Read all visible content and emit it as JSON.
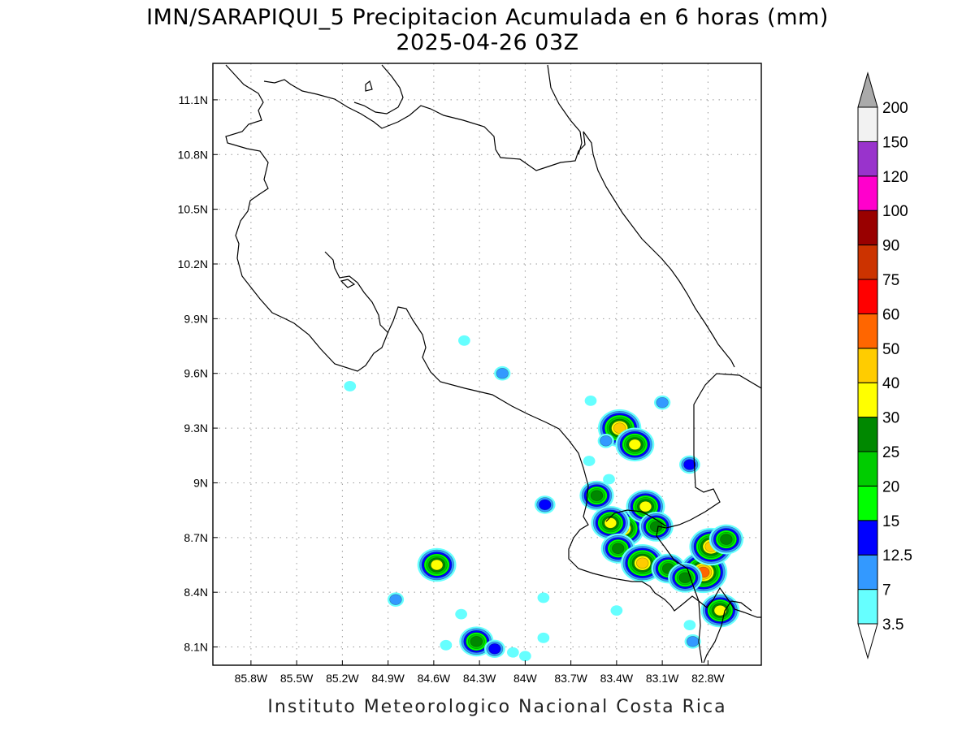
{
  "title": {
    "line1": "IMN/SARAPIQUI_5 Precipitacion Acumulada en 6 horas (mm)",
    "line2": "2025-04-26 03Z"
  },
  "footer": "Instituto Meteorologico Nacional Costa Rica",
  "map": {
    "lon_range": [
      -86.05,
      -82.45
    ],
    "lat_range": [
      8.0,
      11.3
    ],
    "x_ticks": [
      {
        "value": -85.8,
        "label": "85.8W"
      },
      {
        "value": -85.5,
        "label": "85.5W"
      },
      {
        "value": -85.2,
        "label": "85.2W"
      },
      {
        "value": -84.9,
        "label": "84.9W"
      },
      {
        "value": -84.6,
        "label": "84.6W"
      },
      {
        "value": -84.3,
        "label": "84.3W"
      },
      {
        "value": -84.0,
        "label": "84W"
      },
      {
        "value": -83.7,
        "label": "83.7W"
      },
      {
        "value": -83.4,
        "label": "83.4W"
      },
      {
        "value": -83.1,
        "label": "83.1W"
      },
      {
        "value": -82.8,
        "label": "82.8W"
      }
    ],
    "y_ticks": [
      {
        "value": 8.1,
        "label": "8.1N"
      },
      {
        "value": 8.4,
        "label": "8.4N"
      },
      {
        "value": 8.7,
        "label": "8.7N"
      },
      {
        "value": 9.0,
        "label": "9N"
      },
      {
        "value": 9.3,
        "label": "9.3N"
      },
      {
        "value": 9.6,
        "label": "9.6N"
      },
      {
        "value": 9.9,
        "label": "9.9N"
      },
      {
        "value": 10.2,
        "label": "10.2N"
      },
      {
        "value": 10.5,
        "label": "10.5N"
      },
      {
        "value": 10.8,
        "label": "10.8N"
      },
      {
        "value": 11.1,
        "label": "11.1N"
      }
    ],
    "grid": true,
    "precip_cells": [
      {
        "lon": -83.38,
        "lat": 9.3,
        "level": 40
      },
      {
        "lon": -83.28,
        "lat": 9.21,
        "level": 30
      },
      {
        "lon": -83.47,
        "lat": 9.23,
        "level": 7
      },
      {
        "lon": -83.53,
        "lat": 8.93,
        "level": 25
      },
      {
        "lon": -83.36,
        "lat": 8.75,
        "level": 40
      },
      {
        "lon": -83.44,
        "lat": 8.78,
        "level": 30
      },
      {
        "lon": -83.21,
        "lat": 8.87,
        "level": 30
      },
      {
        "lon": -83.14,
        "lat": 8.76,
        "level": 25
      },
      {
        "lon": -83.39,
        "lat": 8.64,
        "level": 25
      },
      {
        "lon": -83.23,
        "lat": 8.56,
        "level": 40
      },
      {
        "lon": -83.06,
        "lat": 8.53,
        "level": 25
      },
      {
        "lon": -82.83,
        "lat": 8.51,
        "level": 50
      },
      {
        "lon": -82.78,
        "lat": 8.65,
        "level": 40
      },
      {
        "lon": -82.68,
        "lat": 8.69,
        "level": 25
      },
      {
        "lon": -82.72,
        "lat": 8.3,
        "level": 30
      },
      {
        "lon": -82.95,
        "lat": 8.48,
        "level": 25
      },
      {
        "lon": -84.58,
        "lat": 8.55,
        "level": 30
      },
      {
        "lon": -84.32,
        "lat": 8.13,
        "level": 25
      },
      {
        "lon": -84.2,
        "lat": 8.09,
        "level": 12.5
      },
      {
        "lon": -84.85,
        "lat": 8.36,
        "level": 7
      },
      {
        "lon": -83.87,
        "lat": 8.88,
        "level": 12.5
      },
      {
        "lon": -84.15,
        "lat": 9.6,
        "level": 7
      },
      {
        "lon": -84.4,
        "lat": 9.78,
        "level": 3.5
      },
      {
        "lon": -85.15,
        "lat": 9.53,
        "level": 3.5
      },
      {
        "lon": -83.1,
        "lat": 9.44,
        "level": 7
      },
      {
        "lon": -82.92,
        "lat": 9.1,
        "level": 12.5
      },
      {
        "lon": -83.57,
        "lat": 9.45,
        "level": 3.5
      },
      {
        "lon": -83.4,
        "lat": 8.3,
        "level": 3.5
      },
      {
        "lon": -82.92,
        "lat": 8.22,
        "level": 3.5
      },
      {
        "lon": -82.9,
        "lat": 8.13,
        "level": 7
      },
      {
        "lon": -83.88,
        "lat": 8.37,
        "level": 3.5
      },
      {
        "lon": -83.88,
        "lat": 8.15,
        "level": 3.5
      },
      {
        "lon": -84.08,
        "lat": 8.07,
        "level": 3.5
      },
      {
        "lon": -84.42,
        "lat": 8.28,
        "level": 3.5
      },
      {
        "lon": -84.52,
        "lat": 8.11,
        "level": 3.5
      },
      {
        "lon": -84.0,
        "lat": 8.05,
        "level": 3.5
      },
      {
        "lon": -83.58,
        "lat": 9.12,
        "level": 3.5
      },
      {
        "lon": -83.45,
        "lat": 9.02,
        "level": 3.5
      }
    ]
  },
  "colorbar": {
    "levels": [
      "3.5",
      "7",
      "12.5",
      "15",
      "20",
      "25",
      "30",
      "40",
      "50",
      "60",
      "75",
      "90",
      "100",
      "120",
      "150",
      "200"
    ],
    "colors": [
      "#ffffff",
      "#66ffff",
      "#3399ff",
      "#0000ff",
      "#00ff00",
      "#00cc00",
      "#008800",
      "#ffff00",
      "#ffcc00",
      "#ff6600",
      "#ff0000",
      "#cc3300",
      "#990000",
      "#ff00cc",
      "#9933cc",
      "#f2f2f2",
      "#aaaaaa"
    ]
  }
}
